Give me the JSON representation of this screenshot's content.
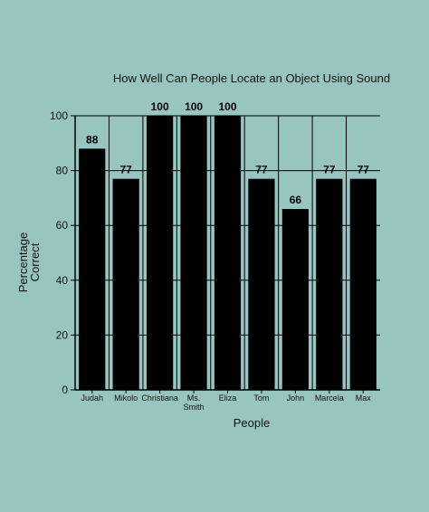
{
  "chart_data": {
    "type": "bar",
    "title": "How Well Can People Locate an Object Using Sound",
    "xlabel": "People",
    "ylabel_lines": [
      "Percentage",
      "Correct"
    ],
    "categories": [
      [
        "Judah"
      ],
      [
        "Mikolo"
      ],
      [
        "Christiana"
      ],
      [
        "Ms.",
        "Smith"
      ],
      [
        "Eliza"
      ],
      [
        "Tom"
      ],
      [
        "John"
      ],
      [
        "Marcela"
      ],
      [
        "Max"
      ]
    ],
    "values": [
      88,
      77,
      100,
      100,
      100,
      77,
      66,
      77,
      77
    ],
    "data_labels": [
      "88",
      "77",
      "100",
      "100",
      "100",
      "77",
      "66",
      "77",
      "77"
    ],
    "ylim": [
      0,
      100
    ],
    "yticks": [
      0,
      20,
      40,
      60,
      80,
      100
    ],
    "ytick_labels": [
      "0",
      "20",
      "40",
      "60",
      "80",
      "100"
    ],
    "grid": true,
    "legend": "none",
    "colors": {
      "background": "#99c5c0",
      "bar": "#000000",
      "grid": "#000000"
    }
  }
}
